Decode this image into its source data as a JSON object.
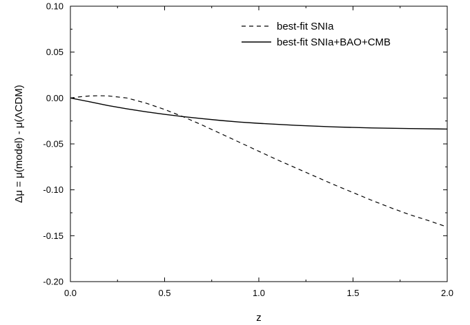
{
  "chart_data": {
    "type": "line",
    "xlabel": "z",
    "ylabel": "Δμ = μ(model) - μ(ΛCDM)",
    "xlim": [
      0.0,
      2.0
    ],
    "ylim": [
      -0.2,
      0.1
    ],
    "x_ticks": [
      "0.0",
      "0.5",
      "1.0",
      "1.5",
      "2.0"
    ],
    "y_ticks": [
      "0.10",
      "0.05",
      "0.00",
      "-0.05",
      "-0.10",
      "-0.15",
      "-0.20"
    ],
    "legend_position": "top-right",
    "grid": false,
    "series": [
      {
        "name": "best-fit SNIa",
        "style": "dashed",
        "color": "#000000",
        "points": [
          [
            0.0,
            0.0
          ],
          [
            0.05,
            0.0013
          ],
          [
            0.1,
            0.0022
          ],
          [
            0.15,
            0.0025
          ],
          [
            0.2,
            0.0023
          ],
          [
            0.3,
            0.0
          ],
          [
            0.4,
            -0.0055
          ],
          [
            0.5,
            -0.0125
          ],
          [
            0.6,
            -0.0205
          ],
          [
            0.7,
            -0.0295
          ],
          [
            0.8,
            -0.039
          ],
          [
            0.9,
            -0.0485
          ],
          [
            1.0,
            -0.058
          ],
          [
            1.1,
            -0.0675
          ],
          [
            1.2,
            -0.0765
          ],
          [
            1.3,
            -0.0855
          ],
          [
            1.4,
            -0.0945
          ],
          [
            1.5,
            -0.103
          ],
          [
            1.6,
            -0.1115
          ],
          [
            1.7,
            -0.1195
          ],
          [
            1.8,
            -0.127
          ],
          [
            1.9,
            -0.1335
          ],
          [
            2.0,
            -0.1405
          ]
        ]
      },
      {
        "name": "best-fit SNIa+BAO+CMB",
        "style": "solid",
        "color": "#000000",
        "points": [
          [
            0.0,
            0.0
          ],
          [
            0.1,
            -0.004
          ],
          [
            0.2,
            -0.0082
          ],
          [
            0.3,
            -0.0118
          ],
          [
            0.4,
            -0.015
          ],
          [
            0.5,
            -0.0178
          ],
          [
            0.6,
            -0.0203
          ],
          [
            0.7,
            -0.0225
          ],
          [
            0.8,
            -0.0245
          ],
          [
            0.9,
            -0.0262
          ],
          [
            1.0,
            -0.0276
          ],
          [
            1.2,
            -0.0298
          ],
          [
            1.4,
            -0.0315
          ],
          [
            1.6,
            -0.0326
          ],
          [
            1.8,
            -0.0333
          ],
          [
            2.0,
            -0.0338
          ]
        ]
      }
    ]
  }
}
